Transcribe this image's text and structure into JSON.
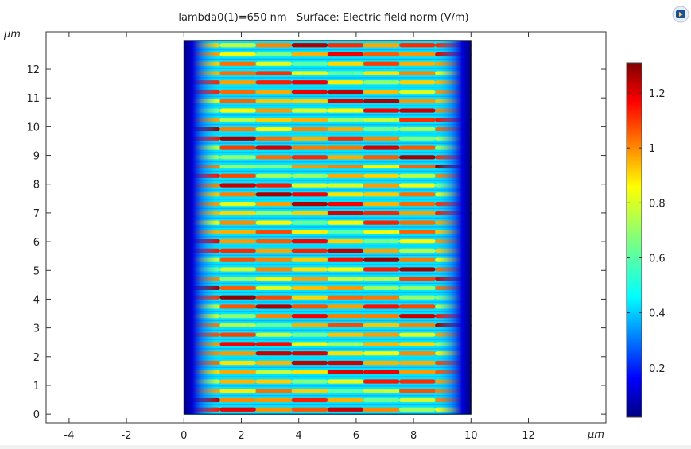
{
  "chart_data": {
    "type": "heatmap",
    "title": "lambda0(1)=650 nm   Surface: Electric field norm (V/m)",
    "xlabel": "μm",
    "ylabel": "μm",
    "x_ticks": [
      -4,
      -2,
      0,
      2,
      4,
      6,
      8,
      10,
      12
    ],
    "y_ticks": [
      0,
      1,
      2,
      3,
      4,
      5,
      6,
      7,
      8,
      9,
      10,
      11,
      12
    ],
    "xlim": [
      -4.8,
      14.7
    ],
    "ylim": [
      -0.3,
      13.3
    ],
    "domain": {
      "x": [
        0,
        10
      ],
      "y": [
        0,
        13
      ]
    },
    "field": {
      "quantity": "Electric field norm",
      "unit": "V/m",
      "min": 0.0,
      "max": 1.3,
      "fringe_count": 40
    },
    "colorbar": {
      "ticks": [
        0.2,
        0.4,
        0.6,
        0.8,
        1,
        1.2
      ],
      "tick_labels": [
        "0.2",
        "0.4",
        "0.6",
        "0.8",
        "1",
        "1.2"
      ],
      "range": [
        0.02,
        1.31
      ],
      "colormap": "jet"
    },
    "grid": false
  },
  "logo": {
    "name": "comsol-logo-icon",
    "color": "#1a4fa0"
  }
}
